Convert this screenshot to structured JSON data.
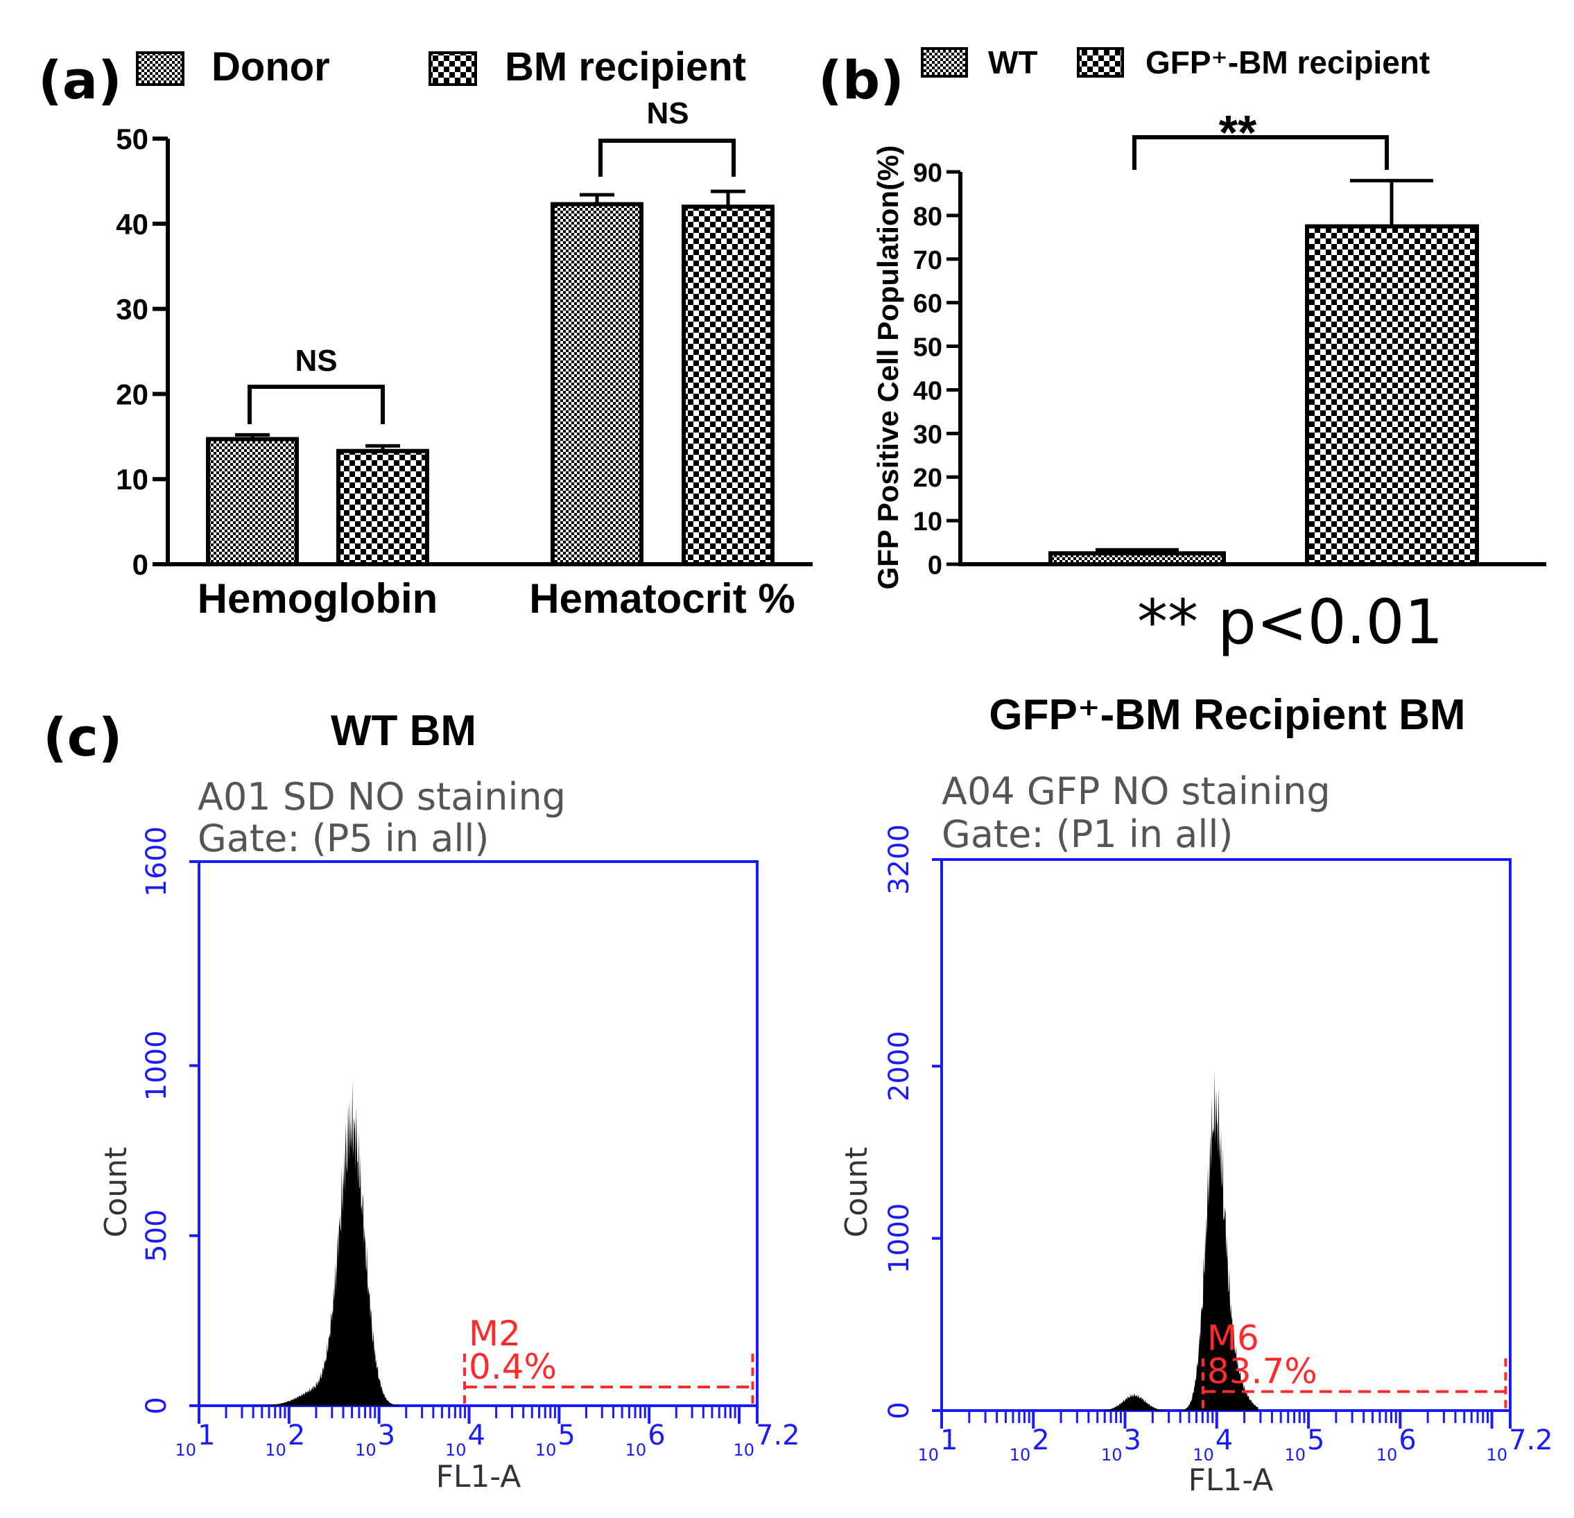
{
  "colors": {
    "axis_blue": "#1a1aff",
    "marker_red": "#ff2a2a",
    "ink": "#000000"
  },
  "chart_data": [
    {
      "id": "a",
      "type": "bar",
      "panel_label": "(a)",
      "legend": [
        "Donor",
        "BM recipient"
      ],
      "categories": [
        "Hemoglobin",
        "Hematocrit %"
      ],
      "series": [
        {
          "name": "Donor",
          "values": [
            14.7,
            42.3
          ],
          "errors": [
            0.5,
            1.1
          ]
        },
        {
          "name": "BM recipient",
          "values": [
            13.3,
            42.0
          ],
          "errors": [
            0.6,
            1.8
          ]
        }
      ],
      "ylim": [
        0,
        50
      ],
      "yticks": [
        "0",
        "10",
        "20",
        "30",
        "40",
        "50"
      ],
      "annotations": [
        "NS",
        "NS"
      ]
    },
    {
      "id": "b",
      "type": "bar",
      "panel_label": "(b)",
      "legend": [
        "WT",
        "GFP⁺-BM recipient"
      ],
      "categories": [
        "WT",
        "GFP⁺-BM recipient"
      ],
      "values": [
        2.5,
        77.5
      ],
      "errors": [
        0.8,
        10.5
      ],
      "ylabel": "GFP Positive Cell Population(%)",
      "ylim": [
        0,
        90
      ],
      "yticks": [
        "0",
        "10",
        "20",
        "30",
        "40",
        "50",
        "60",
        "70",
        "80",
        "90"
      ],
      "annotation": "**",
      "footnote": "** p<0.01"
    },
    {
      "id": "c1",
      "type": "histogram",
      "panel_label": "(c)",
      "title": "WT BM",
      "sample": "A01 SD NO staining",
      "gate": "Gate: (P5 in all)",
      "xlabel": "FL1-A",
      "ylabel": "Count",
      "yticks": [
        "0",
        "500",
        "1000",
        "1600"
      ],
      "ylim": [
        0,
        1600
      ],
      "xticks": [
        "10",
        "1",
        "10",
        "2",
        "10",
        "3",
        "10",
        "4",
        "10",
        "5",
        "10",
        "6",
        "10",
        "7.2"
      ],
      "xlim_log10": [
        1,
        7.2
      ],
      "peak_log10": 2.7,
      "peak_count": 830,
      "peak_width": 0.14,
      "shoulder_count": 50,
      "marker": {
        "name": "M2",
        "percent": "0.4%",
        "from_log10": 3.95,
        "to_log10": 7.15,
        "level": 55
      }
    },
    {
      "id": "c2",
      "type": "histogram",
      "title": "GFP⁺-BM Recipient BM",
      "sample": "A04 GFP NO staining",
      "gate": "Gate: (P1 in all)",
      "xlabel": "FL1-A",
      "ylabel": "Count",
      "yticks": [
        "0",
        "1000",
        "2000",
        "3200"
      ],
      "ylim": [
        0,
        3200
      ],
      "xticks": [
        "10",
        "1",
        "10",
        "2",
        "10",
        "3",
        "10",
        "4",
        "10",
        "5",
        "10",
        "6",
        "10",
        "7.2"
      ],
      "xlim_log10": [
        1,
        7.2
      ],
      "peak_log10": 3.98,
      "peak_count": 1620,
      "peak_width": 0.1,
      "minor_peak_log10": 3.1,
      "minor_peak_count": 90,
      "marker": {
        "name": "M6",
        "percent": "83.7%",
        "from_log10": 3.85,
        "to_log10": 7.15,
        "level": 110
      }
    }
  ]
}
